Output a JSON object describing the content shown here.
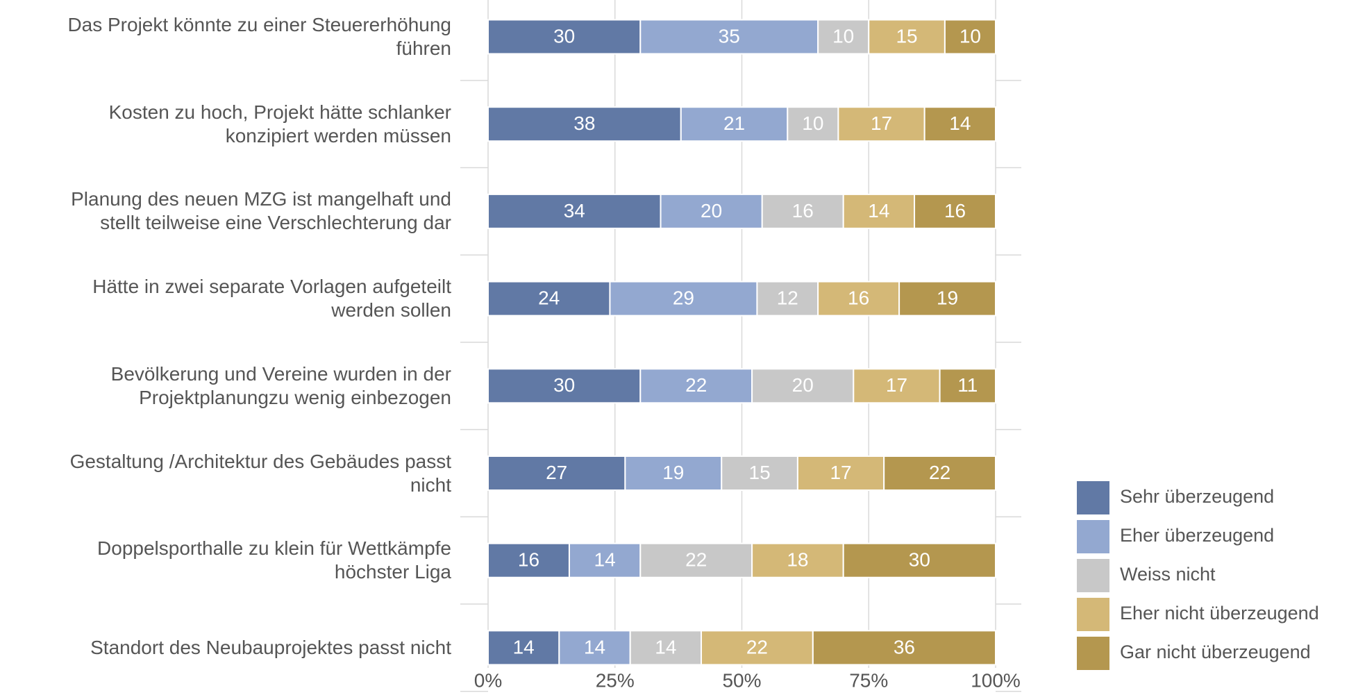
{
  "chart_data": {
    "type": "stacked_barh",
    "categories": [
      "Das Projekt könnte zu einer Steuererhöhung\nführen",
      "Kosten zu hoch, Projekt hätte schlanker\nkonzipiert werden müssen",
      "Planung des neuen MZG ist mangelhaft und\nstellt teilweise eine Verschlechterung dar",
      "Hätte in zwei separate Vorlagen aufgeteilt\nwerden sollen",
      "Bevölkerung und Vereine wurden in der\nProjektplanungzu wenig einbezogen",
      "Gestaltung /Architektur des Gebäudes passt\nnicht",
      "Doppelsporthalle zu klein für Wettkämpfe\nhöchster Liga",
      "Standort des Neubauprojektes passt nicht"
    ],
    "series": [
      {
        "name": "Sehr überzeugend",
        "color": "#6179a5",
        "values": [
          30,
          38,
          34,
          24,
          30,
          27,
          16,
          14
        ]
      },
      {
        "name": "Eher überzeugend",
        "color": "#93a8d0",
        "values": [
          35,
          21,
          20,
          29,
          22,
          19,
          14,
          14
        ]
      },
      {
        "name": "Weiss nicht",
        "color": "#c8c8c8",
        "values": [
          10,
          10,
          16,
          12,
          20,
          15,
          22,
          14
        ]
      },
      {
        "name": "Eher nicht überzeugend",
        "color": "#d4b877",
        "values": [
          15,
          17,
          14,
          16,
          17,
          17,
          18,
          22
        ]
      },
      {
        "name": "Gar nicht überzeugend",
        "color": "#b4974f",
        "values": [
          10,
          14,
          16,
          19,
          11,
          22,
          30,
          36
        ]
      }
    ],
    "xlim": [
      0,
      100
    ],
    "xticks": [
      {
        "value": 0,
        "label": "0%"
      },
      {
        "value": 25,
        "label": "25%"
      },
      {
        "value": 50,
        "label": "50%"
      },
      {
        "value": 75,
        "label": "75%"
      },
      {
        "value": 100,
        "label": "100%"
      }
    ],
    "grid": true,
    "legend": "right"
  }
}
